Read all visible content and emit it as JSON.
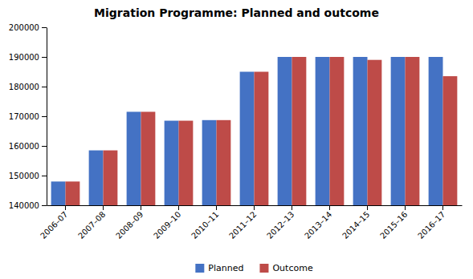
{
  "chart_data": {
    "type": "bar",
    "title": "Migration Programme: Planned and outcome",
    "categories": [
      "2006–07",
      "2007–08",
      "2008–09",
      "2009–10",
      "2010–11",
      "2011–12",
      "2012–13",
      "2013–14",
      "2014–15",
      "2015–16",
      "2016–17"
    ],
    "series": [
      {
        "name": "Planned",
        "color": "#4472C4",
        "values": [
          148000,
          158500,
          171500,
          168500,
          168700,
          185000,
          190000,
          190000,
          190000,
          190000,
          190000
        ]
      },
      {
        "name": "Outcome",
        "color": "#BE4B48",
        "values": [
          148000,
          158500,
          171500,
          168500,
          168700,
          185000,
          190000,
          190000,
          189000,
          190000,
          183500
        ]
      }
    ],
    "ylim": [
      140000,
      200000
    ],
    "yticks": [
      140000,
      150000,
      160000,
      170000,
      180000,
      190000,
      200000
    ],
    "grid": false,
    "legend": "bottom"
  }
}
